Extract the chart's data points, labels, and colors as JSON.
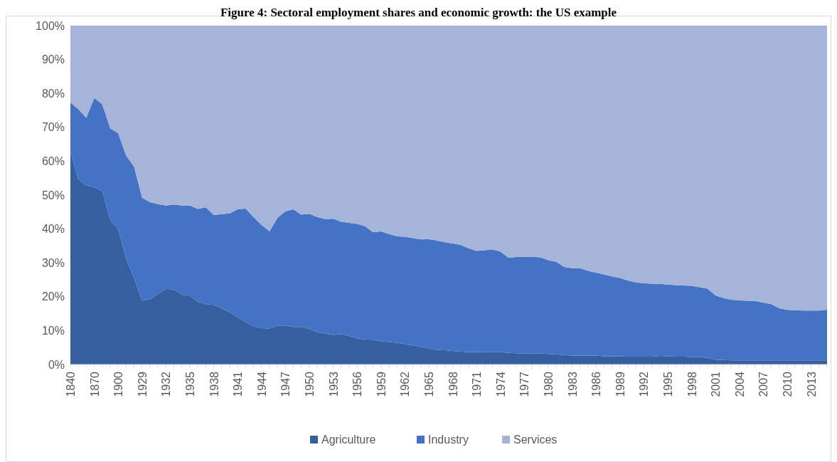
{
  "chart_data": {
    "type": "area",
    "stacked": true,
    "title": "Figure 4: Sectoral employment shares and economic growth: the US example",
    "categories": [
      "1840",
      null,
      null,
      "1870",
      null,
      null,
      "1900",
      null,
      null,
      "1929",
      null,
      null,
      "1932",
      null,
      null,
      "1935",
      null,
      null,
      "1938",
      null,
      null,
      "1941",
      null,
      null,
      "1944",
      null,
      null,
      "1947",
      null,
      null,
      "1950",
      null,
      null,
      "1953",
      null,
      null,
      "1956",
      null,
      null,
      "1959",
      null,
      null,
      "1962",
      null,
      null,
      "1965",
      null,
      null,
      "1968",
      null,
      null,
      "1971",
      null,
      null,
      "1974",
      null,
      null,
      "1977",
      null,
      null,
      "1980",
      null,
      null,
      "1983",
      null,
      null,
      "1986",
      null,
      null,
      "1989",
      null,
      null,
      "1992",
      null,
      null,
      "1995",
      null,
      null,
      "1998",
      null,
      null,
      "2001",
      null,
      null,
      "2004",
      null,
      null,
      "2007",
      null,
      null,
      "2010",
      null,
      null,
      "2013",
      null,
      null
    ],
    "series": [
      {
        "name": "Agriculture",
        "color": "#365f9f",
        "values": [
          62.7,
          54.6,
          52.8,
          52.3,
          51.1,
          42.6,
          39.9,
          31.2,
          25.5,
          18.8,
          19.3,
          20.8,
          22.3,
          22.1,
          20.6,
          20.3,
          18.5,
          17.8,
          17.6,
          16.5,
          15.4,
          13.9,
          12.5,
          11.3,
          10.7,
          10.6,
          11.5,
          11.4,
          11.1,
          11.1,
          10.5,
          9.5,
          9.1,
          8.7,
          9.0,
          8.4,
          7.7,
          7.4,
          7.3,
          6.9,
          6.6,
          6.4,
          6.0,
          5.6,
          5.2,
          4.8,
          4.3,
          4.2,
          4.0,
          3.8,
          3.7,
          3.7,
          3.6,
          3.6,
          3.6,
          3.4,
          3.3,
          3.2,
          3.2,
          3.2,
          3.1,
          3.0,
          2.8,
          2.6,
          2.6,
          2.6,
          2.6,
          2.4,
          2.4,
          2.4,
          2.3,
          2.3,
          2.3,
          2.3,
          2.5,
          2.4,
          2.3,
          2.3,
          2.2,
          2.2,
          1.9,
          1.4,
          1.3,
          1.2,
          1.2,
          1.2,
          1.2,
          1.2,
          1.2,
          1.2,
          1.2,
          1.2,
          1.2,
          1.2,
          1.2,
          1.2
        ]
      },
      {
        "name": "Industry",
        "color": "#4472c4",
        "values": [
          14.6,
          20.7,
          20.0,
          26.4,
          25.7,
          27.1,
          28.3,
          30.4,
          32.9,
          30.4,
          28.6,
          26.5,
          24.6,
          25.1,
          26.3,
          26.6,
          27.4,
          28.6,
          26.5,
          27.9,
          29.2,
          31.9,
          33.5,
          32.2,
          30.5,
          28.7,
          31.8,
          33.8,
          34.7,
          33.1,
          34.0,
          34.0,
          33.8,
          34.3,
          33.1,
          33.4,
          33.8,
          33.4,
          31.7,
          32.4,
          31.9,
          31.4,
          31.7,
          31.7,
          31.7,
          32.2,
          32.3,
          31.9,
          31.7,
          31.5,
          30.6,
          29.8,
          30.1,
          30.4,
          29.7,
          28.1,
          28.4,
          28.6,
          28.6,
          28.4,
          27.7,
          27.3,
          26.0,
          25.8,
          25.8,
          25.0,
          24.5,
          24.2,
          23.6,
          23.1,
          22.5,
          21.9,
          21.7,
          21.5,
          21.3,
          21.2,
          21.1,
          21.0,
          21.0,
          20.6,
          20.5,
          19.0,
          18.3,
          17.9,
          17.7,
          17.6,
          17.5,
          17.1,
          16.6,
          15.4,
          14.9,
          14.8,
          14.7,
          14.7,
          14.7,
          15.0
        ]
      },
      {
        "name": "Services",
        "color": "#a7b4d9",
        "values": [
          22.7,
          24.7,
          27.2,
          21.3,
          23.2,
          30.3,
          31.8,
          38.4,
          41.6,
          50.8,
          52.1,
          52.7,
          53.1,
          52.8,
          53.1,
          53.1,
          54.1,
          53.6,
          55.9,
          55.6,
          55.4,
          54.2,
          54.0,
          56.5,
          58.8,
          60.7,
          56.7,
          54.8,
          54.2,
          55.8,
          55.5,
          56.5,
          57.1,
          57.0,
          57.9,
          58.2,
          58.5,
          59.2,
          61.0,
          60.7,
          61.5,
          62.2,
          62.3,
          62.7,
          63.1,
          63.0,
          63.4,
          63.9,
          64.3,
          64.7,
          65.7,
          66.5,
          66.3,
          66.0,
          66.7,
          68.5,
          68.3,
          68.2,
          68.2,
          68.4,
          69.2,
          69.7,
          71.2,
          71.6,
          71.6,
          72.4,
          72.9,
          73.4,
          74.0,
          74.5,
          75.2,
          75.8,
          76.0,
          76.2,
          76.2,
          76.4,
          76.6,
          76.7,
          76.8,
          77.2,
          77.6,
          79.6,
          80.4,
          80.9,
          81.1,
          81.2,
          81.3,
          81.7,
          82.2,
          83.4,
          83.9,
          84.0,
          84.1,
          84.1,
          84.1,
          83.8
        ]
      }
    ],
    "ylim": [
      0,
      100
    ],
    "yticks": [
      {
        "value": 0,
        "label": "0%"
      },
      {
        "value": 10,
        "label": "10%"
      },
      {
        "value": 20,
        "label": "20%"
      },
      {
        "value": 30,
        "label": "30%"
      },
      {
        "value": 40,
        "label": "40%"
      },
      {
        "value": 50,
        "label": "50%"
      },
      {
        "value": 60,
        "label": "60%"
      },
      {
        "value": 70,
        "label": "70%"
      },
      {
        "value": 80,
        "label": "80%"
      },
      {
        "value": 90,
        "label": "90%"
      },
      {
        "value": 100,
        "label": "100%"
      }
    ],
    "legend": "bottom"
  }
}
